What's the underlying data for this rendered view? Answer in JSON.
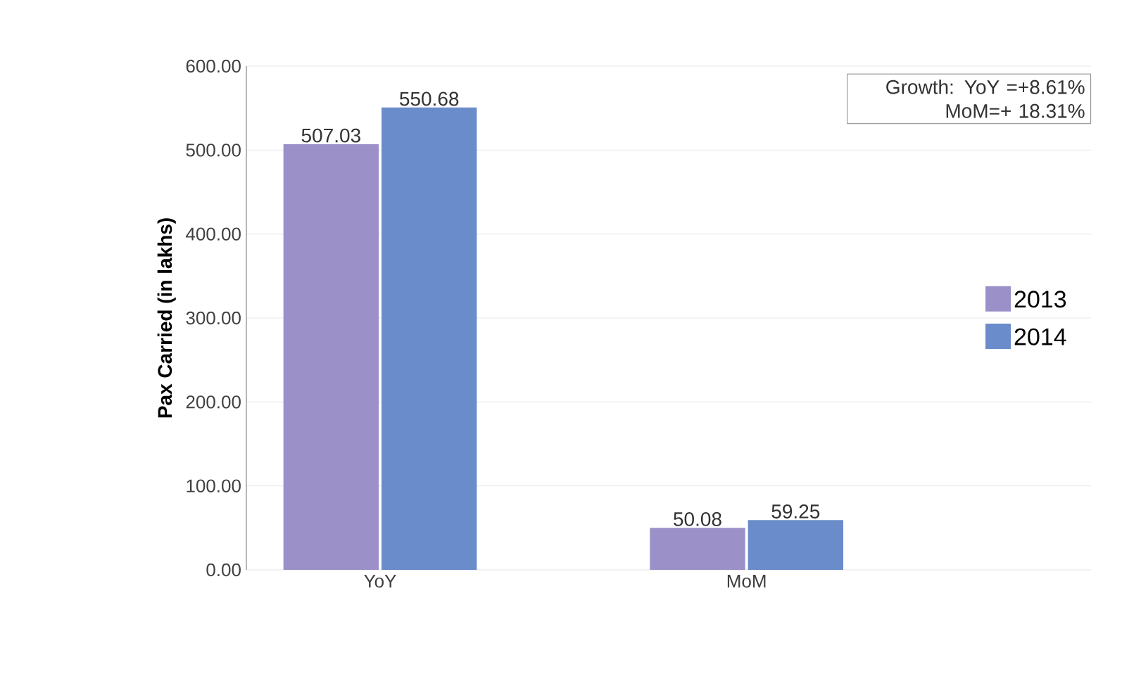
{
  "chart_data": {
    "type": "bar",
    "ylabel": "Pax Carried (in lakhs)",
    "categories": [
      "YoY",
      "MoM"
    ],
    "series": [
      {
        "name": "2013",
        "color": "#9b90c8",
        "values": [
          507.03,
          50.08
        ]
      },
      {
        "name": "2014",
        "color": "#6a8cca",
        "values": [
          550.68,
          59.25
        ]
      }
    ],
    "ylim": [
      0,
      600
    ],
    "yticks": [
      {
        "value": 0,
        "label": "0.00"
      },
      {
        "value": 100,
        "label": "100.00"
      },
      {
        "value": 200,
        "label": "200.00"
      },
      {
        "value": 300,
        "label": "300.00"
      },
      {
        "value": 400,
        "label": "400.00"
      },
      {
        "value": 500,
        "label": "500.00"
      },
      {
        "value": 600,
        "label": "600.00"
      }
    ],
    "grid": "y",
    "legend": "right",
    "data_labels": true,
    "annotations": [
      "Growth: YoY =+8.61%",
      "MoM=+ 18.31%"
    ]
  }
}
